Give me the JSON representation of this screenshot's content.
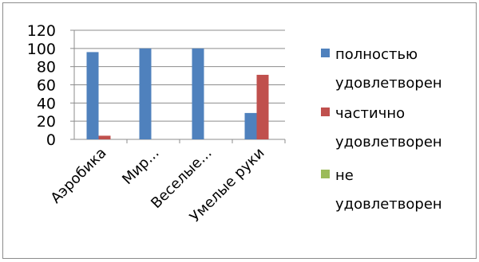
{
  "chart_data": {
    "type": "bar",
    "categories": [
      "Аэробика",
      "Мир...",
      "Веселые...",
      "Умелые руки"
    ],
    "series": [
      {
        "name": "полностью удовлетворен",
        "legend_lines": [
          "полностью",
          "удовлетворен"
        ],
        "color": "#4f81bd",
        "values": [
          96,
          100,
          100,
          29
        ]
      },
      {
        "name": "частично удовлетворен",
        "legend_lines": [
          "частично",
          "удовлетворен"
        ],
        "color": "#c0504d",
        "values": [
          4,
          0,
          0,
          71
        ]
      },
      {
        "name": "не удовлетворен",
        "legend_lines": [
          "не",
          "удовлетворен"
        ],
        "color": "#9bbb59",
        "values": [
          0,
          0,
          0,
          0
        ]
      }
    ],
    "ylim": [
      0,
      120
    ],
    "yticks": [
      0,
      20,
      40,
      60,
      80,
      100,
      120
    ],
    "grid": true,
    "legend_position": "right",
    "title": "",
    "xlabel": "",
    "ylabel": ""
  }
}
